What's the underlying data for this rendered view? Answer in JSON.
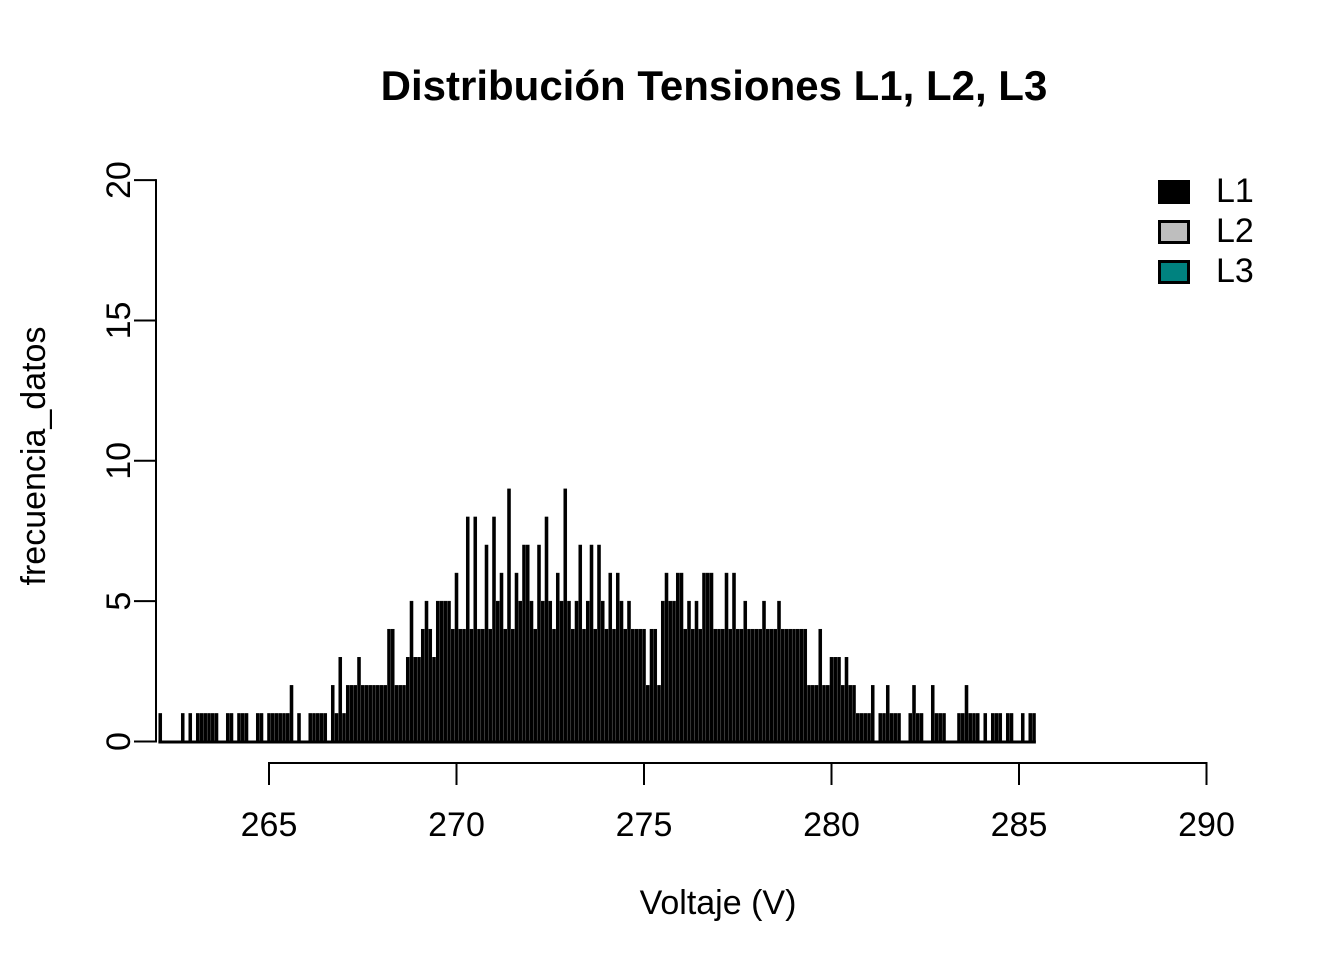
{
  "title": "Distribución Tensiones L1, L2, L3",
  "x_axis": {
    "label": "Voltaje (V)",
    "tick_labels": [
      "265",
      "270",
      "275",
      "280",
      "285",
      "290"
    ]
  },
  "y_axis": {
    "label": "frecuencia_datos",
    "tick_labels": [
      "0",
      "5",
      "10",
      "15",
      "20"
    ]
  },
  "legend": {
    "position": "top-right",
    "items": [
      {
        "label": "L1",
        "color": "#000000"
      },
      {
        "label": "L2",
        "color": "#bebebe"
      },
      {
        "label": "L3",
        "color": "#00827f"
      }
    ]
  },
  "chart_data": {
    "type": "bar",
    "subtype": "histogram",
    "title": "Distribución Tensiones L1, L2, L3",
    "xlabel": "Voltaje (V)",
    "ylabel": "frecuencia_datos",
    "xlim": [
      262,
      290
    ],
    "ylim": [
      0,
      20
    ],
    "x_ticks": [
      265,
      270,
      275,
      280,
      285,
      290
    ],
    "y_ticks": [
      0,
      5,
      10,
      15,
      20
    ],
    "grid": false,
    "legend_position": "top-right",
    "bar_color": "#000000",
    "bin_width": 0.1,
    "bin_start": 262.1,
    "series": [
      {
        "name": "L1",
        "color": "#000000",
        "visible": true,
        "counts": [
          1,
          0,
          0,
          0,
          0,
          0,
          1,
          0,
          1,
          0,
          1,
          1,
          1,
          1,
          1,
          1,
          0,
          0,
          1,
          1,
          0,
          1,
          1,
          1,
          0,
          0,
          1,
          1,
          0,
          1,
          1,
          1,
          1,
          1,
          1,
          2,
          0,
          1,
          0,
          0,
          1,
          1,
          1,
          1,
          1,
          0,
          2,
          1,
          3,
          1,
          2,
          2,
          2,
          3,
          2,
          2,
          2,
          2,
          2,
          2,
          2,
          4,
          4,
          2,
          2,
          2,
          3,
          5,
          3,
          3,
          4,
          5,
          4,
          3,
          5,
          5,
          5,
          5,
          4,
          6,
          4,
          4,
          8,
          4,
          8,
          4,
          4,
          7,
          4,
          8,
          5,
          6,
          4,
          9,
          4,
          6,
          5,
          7,
          7,
          5,
          4,
          7,
          5,
          8,
          5,
          4,
          6,
          5,
          9,
          5,
          4,
          5,
          7,
          4,
          5,
          7,
          4,
          7,
          5,
          4,
          6,
          4,
          6,
          5,
          4,
          5,
          4,
          4,
          4,
          4,
          2,
          4,
          4,
          2,
          5,
          6,
          5,
          5,
          6,
          6,
          4,
          5,
          4,
          5,
          4,
          6,
          6,
          6,
          4,
          4,
          4,
          6,
          4,
          6,
          4,
          4,
          5,
          4,
          4,
          4,
          4,
          5,
          4,
          4,
          4,
          5,
          4,
          4,
          4,
          4,
          4,
          4,
          4,
          2,
          2,
          2,
          4,
          2,
          2,
          3,
          3,
          3,
          2,
          3,
          2,
          2,
          1,
          1,
          1,
          1,
          2,
          0,
          1,
          1,
          2,
          1,
          1,
          1,
          0,
          0,
          1,
          2,
          1,
          1,
          0,
          0,
          2,
          1,
          1,
          1,
          0,
          0,
          0,
          1,
          1,
          2,
          1,
          1,
          1,
          0,
          1,
          0,
          1,
          1,
          1,
          0,
          1,
          1,
          0,
          0,
          1,
          0,
          1,
          1
        ]
      },
      {
        "name": "L2",
        "color": "#bebebe",
        "visible": false,
        "counts": []
      },
      {
        "name": "L3",
        "color": "#00827f",
        "visible": false,
        "counts": []
      }
    ]
  }
}
